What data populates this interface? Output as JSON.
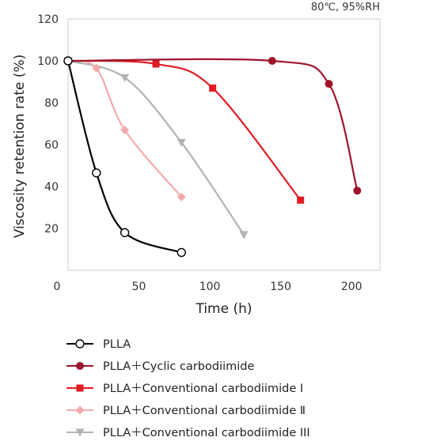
{
  "chart_data": {
    "type": "line",
    "title": "",
    "annotation": "80℃, 95%RH",
    "xlabel": "Time (h)",
    "ylabel": "Viscosity retention rate (%)",
    "xlim": [
      0,
      220
    ],
    "ylim": [
      0,
      120
    ],
    "xticks": [
      0,
      50,
      100,
      150,
      200
    ],
    "yticks": [
      20,
      40,
      60,
      80,
      100,
      120
    ],
    "grid": false,
    "legend_position": "bottom",
    "series": [
      {
        "name": "PLLA",
        "color": "#000000",
        "marker": "circle-open",
        "x": [
          0,
          20,
          40,
          80
        ],
        "y": [
          100,
          46.5,
          18,
          8.5
        ]
      },
      {
        "name": "PLLA＋Cyclic carbodiimide",
        "color": "#a0142a",
        "marker": "circle",
        "x": [
          0,
          144,
          184,
          204
        ],
        "y": [
          100,
          100,
          89,
          38
        ]
      },
      {
        "name": "PLLA＋Conventional carbodiimide Ⅰ",
        "color": "#e01b24",
        "marker": "square",
        "x": [
          0,
          62,
          102,
          164
        ],
        "y": [
          100,
          98.5,
          87,
          33.5
        ]
      },
      {
        "name": "PLLA＋Conventional carbodiimide Ⅱ",
        "color": "#f4aaaa",
        "marker": "diamond",
        "x": [
          0,
          20,
          40,
          80
        ],
        "y": [
          100,
          96.5,
          67,
          35
        ]
      },
      {
        "name": "PLLA＋Conventional carbodiimide III",
        "color": "#b3b3b3",
        "marker": "triangle-down",
        "x": [
          0,
          40,
          80,
          124
        ],
        "y": [
          100,
          92,
          61,
          17
        ]
      }
    ]
  }
}
